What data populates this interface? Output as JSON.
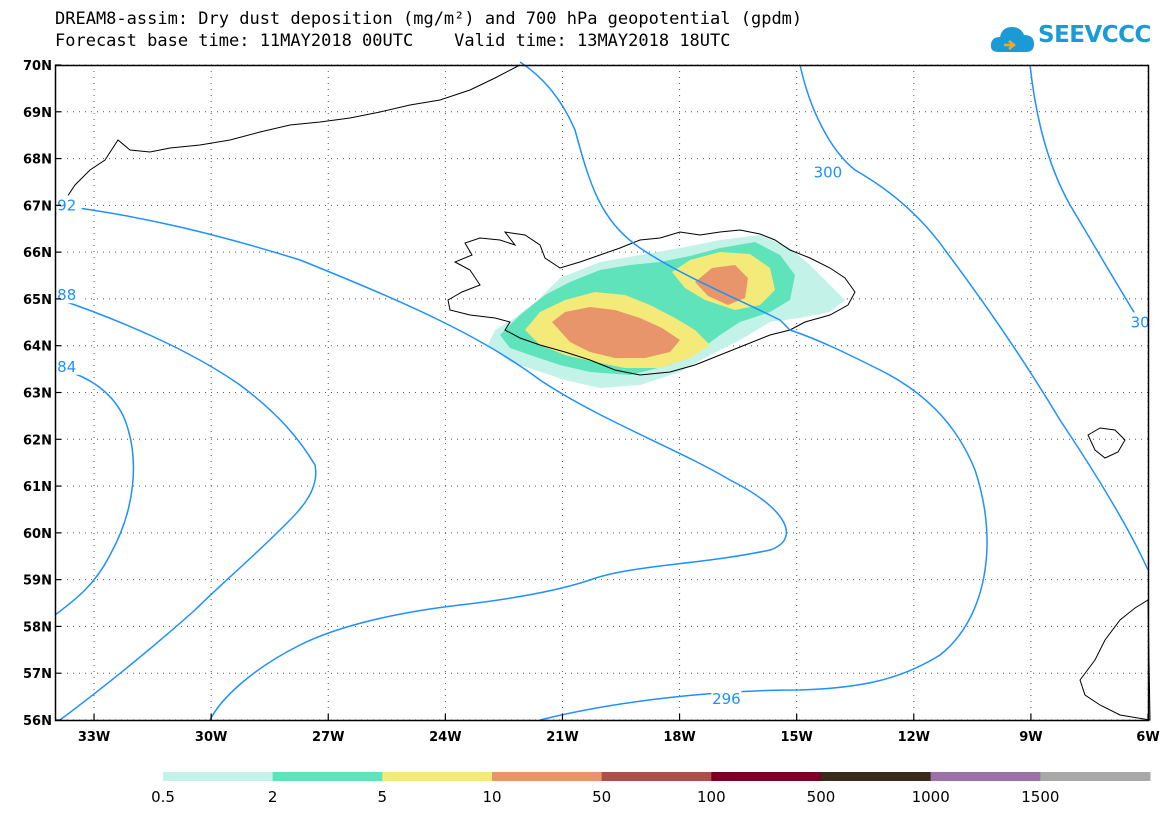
{
  "title": {
    "line1": "DREAM8-assim: Dry dust deposition (mg/m²) and 700 hPa geopotential (gpdm)",
    "line2": "Forecast base time: 11MAY2018 00UTC    Valid time: 13MAY2018 18UTC"
  },
  "logo": {
    "text": "SEEVCCC",
    "icon": "cloud-icon",
    "color": "#1a9bd8"
  },
  "map": {
    "lon_range": [
      -34,
      -6
    ],
    "lat_range": [
      56,
      70
    ],
    "lon_ticks": [
      {
        "value": -33,
        "label": "33W"
      },
      {
        "value": -30,
        "label": "30W"
      },
      {
        "value": -27,
        "label": "27W"
      },
      {
        "value": -24,
        "label": "24W"
      },
      {
        "value": -21,
        "label": "21W"
      },
      {
        "value": -18,
        "label": "18W"
      },
      {
        "value": -15,
        "label": "15W"
      },
      {
        "value": -12,
        "label": "12W"
      },
      {
        "value": -9,
        "label": "9W"
      },
      {
        "value": -6,
        "label": "6W"
      }
    ],
    "lat_ticks": [
      {
        "value": 70,
        "label": "70N"
      },
      {
        "value": 69,
        "label": "69N"
      },
      {
        "value": 68,
        "label": "68N"
      },
      {
        "value": 67,
        "label": "67N"
      },
      {
        "value": 66,
        "label": "66N"
      },
      {
        "value": 65,
        "label": "65N"
      },
      {
        "value": 64,
        "label": "64N"
      },
      {
        "value": 63,
        "label": "63N"
      },
      {
        "value": 62,
        "label": "62N"
      },
      {
        "value": 61,
        "label": "61N"
      },
      {
        "value": 60,
        "label": "60N"
      },
      {
        "value": 59,
        "label": "59N"
      },
      {
        "value": 58,
        "label": "58N"
      },
      {
        "value": 57,
        "label": "57N"
      },
      {
        "value": 56,
        "label": "56N"
      }
    ],
    "contour_color": "#1e90ff",
    "contour_labels": [
      {
        "text": "300",
        "lon": -14.2,
        "lat": 67.7
      },
      {
        "text": "296",
        "lon": -16.8,
        "lat": 56.45
      },
      {
        "text": "92",
        "lon": -33.7,
        "lat": 67.0
      },
      {
        "text": "88",
        "lon": -33.7,
        "lat": 65.08
      },
      {
        "text": "84",
        "lon": -33.7,
        "lat": 63.55
      },
      {
        "text": "30",
        "lon": -6.2,
        "lat": 64.5
      }
    ]
  },
  "legend": {
    "labels": [
      "0.5",
      "2",
      "5",
      "10",
      "50",
      "100",
      "500",
      "1000",
      "1500"
    ],
    "colors": [
      "#c3f2e9",
      "#5fe3bb",
      "#f3ea7a",
      "#e9956b",
      "#a9504a",
      "#7c0026",
      "#3a2a1a",
      "#9b72a8",
      "#a8a8a8"
    ]
  }
}
